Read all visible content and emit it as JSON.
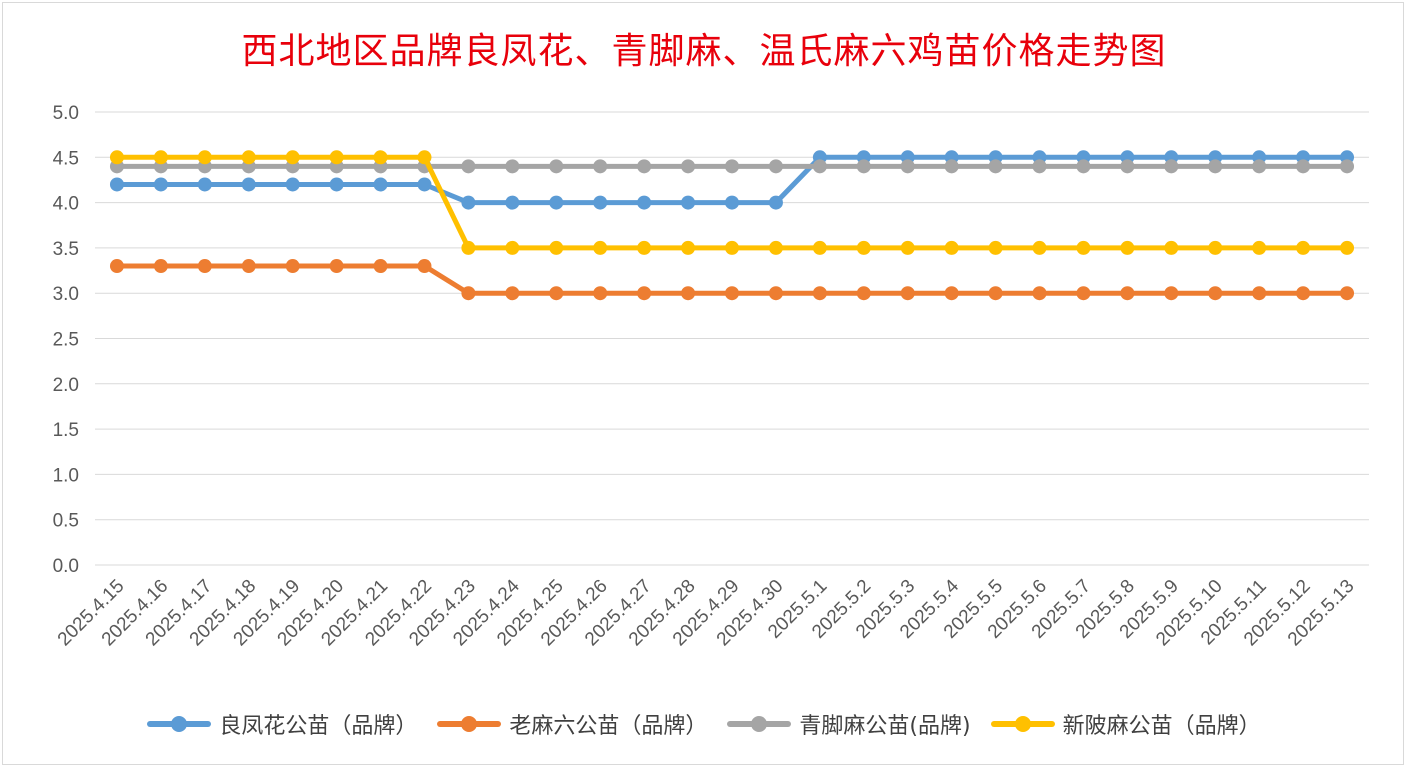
{
  "title": "西北地区品牌良凤花、青脚麻、温氏麻六鸡苗价格走势图",
  "chart_data": {
    "type": "line",
    "title": "西北地区品牌良凤花、青脚麻、温氏麻六鸡苗价格走势图",
    "xlabel": "",
    "ylabel": "",
    "ylim": [
      0,
      5
    ],
    "yticks": [
      "0.0",
      "0.5",
      "1.0",
      "1.5",
      "2.0",
      "2.5",
      "3.0",
      "3.5",
      "4.0",
      "4.5",
      "5.0"
    ],
    "grid": true,
    "legend": "bottom",
    "categories": [
      "2025.4.15",
      "2025.4.16",
      "2025.4.17",
      "2025.4.18",
      "2025.4.19",
      "2025.4.20",
      "2025.4.21",
      "2025.4.22",
      "2025.4.23",
      "2025.4.24",
      "2025.4.25",
      "2025.4.26",
      "2025.4.27",
      "2025.4.28",
      "2025.4.29",
      "2025.4.30",
      "2025.5.1",
      "2025.5.2",
      "2025.5.3",
      "2025.5.4",
      "2025.5.5",
      "2025.5.6",
      "2025.5.7",
      "2025.5.8",
      "2025.5.9",
      "2025.5.10",
      "2025.5.11",
      "2025.5.12",
      "2025.5.13"
    ],
    "series": [
      {
        "name": "良凤花公苗（品牌）",
        "color": "#5b9bd5",
        "values": [
          4.2,
          4.2,
          4.2,
          4.2,
          4.2,
          4.2,
          4.2,
          4.2,
          4.0,
          4.0,
          4.0,
          4.0,
          4.0,
          4.0,
          4.0,
          4.0,
          4.5,
          4.5,
          4.5,
          4.5,
          4.5,
          4.5,
          4.5,
          4.5,
          4.5,
          4.5,
          4.5,
          4.5,
          4.5
        ]
      },
      {
        "name": "老麻六公苗（品牌）",
        "color": "#ed7d31",
        "values": [
          3.3,
          3.3,
          3.3,
          3.3,
          3.3,
          3.3,
          3.3,
          3.3,
          3.0,
          3.0,
          3.0,
          3.0,
          3.0,
          3.0,
          3.0,
          3.0,
          3.0,
          3.0,
          3.0,
          3.0,
          3.0,
          3.0,
          3.0,
          3.0,
          3.0,
          3.0,
          3.0,
          3.0,
          3.0
        ]
      },
      {
        "name": "青脚麻公苗(品牌)",
        "color": "#a5a5a5",
        "values": [
          4.4,
          4.4,
          4.4,
          4.4,
          4.4,
          4.4,
          4.4,
          4.4,
          4.4,
          4.4,
          4.4,
          4.4,
          4.4,
          4.4,
          4.4,
          4.4,
          4.4,
          4.4,
          4.4,
          4.4,
          4.4,
          4.4,
          4.4,
          4.4,
          4.4,
          4.4,
          4.4,
          4.4,
          4.4
        ]
      },
      {
        "name": "新陂麻公苗（品牌）",
        "color": "#ffc000",
        "values": [
          4.5,
          4.5,
          4.5,
          4.5,
          4.5,
          4.5,
          4.5,
          4.5,
          3.5,
          3.5,
          3.5,
          3.5,
          3.5,
          3.5,
          3.5,
          3.5,
          3.5,
          3.5,
          3.5,
          3.5,
          3.5,
          3.5,
          3.5,
          3.5,
          3.5,
          3.5,
          3.5,
          3.5,
          3.5
        ]
      }
    ]
  }
}
